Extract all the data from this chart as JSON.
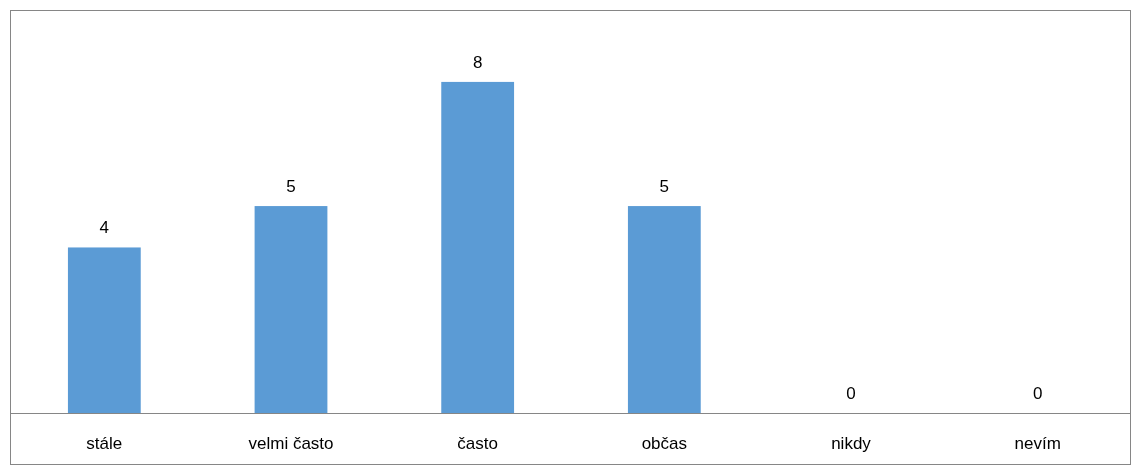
{
  "chart_data": {
    "type": "bar",
    "categories": [
      "stále",
      "velmi často",
      "často",
      "občas",
      "nikdy",
      "nevím"
    ],
    "values": [
      4,
      5,
      8,
      5,
      0,
      0
    ],
    "color": "#5b9bd5",
    "data_labels": true
  }
}
